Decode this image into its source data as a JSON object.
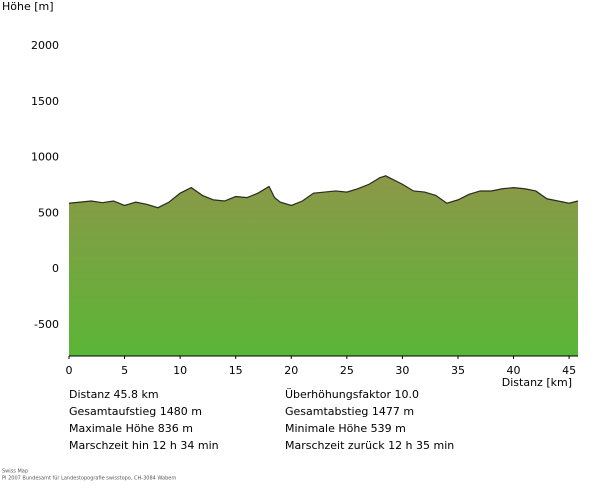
{
  "chart_data": {
    "type": "area",
    "ylabel": "Höhe [m]",
    "xlabel": "Distanz [km]",
    "x": [
      0,
      1,
      2,
      3,
      4,
      5,
      6,
      7,
      8,
      9,
      10,
      11,
      12,
      13,
      14,
      15,
      16,
      17,
      18,
      18.5,
      19,
      20,
      21,
      22,
      23,
      24,
      25,
      26,
      27,
      28,
      28.5,
      29,
      30,
      31,
      32,
      33,
      34,
      35,
      36,
      37,
      38,
      39,
      40,
      41,
      42,
      43,
      44,
      45,
      45.8
    ],
    "values": [
      590,
      600,
      610,
      595,
      610,
      570,
      600,
      580,
      550,
      600,
      680,
      730,
      660,
      620,
      610,
      650,
      640,
      680,
      740,
      640,
      600,
      570,
      610,
      680,
      690,
      700,
      690,
      720,
      760,
      820,
      836,
      810,
      760,
      700,
      690,
      660,
      590,
      620,
      670,
      700,
      700,
      720,
      730,
      720,
      700,
      630,
      610,
      590,
      610
    ],
    "gradient": [
      "#8c9848",
      "#5ab636"
    ],
    "outline": "#2a2a20",
    "xlim": [
      0,
      45.8
    ],
    "xticks": [
      0,
      5,
      10,
      15,
      20,
      25,
      30,
      35,
      40,
      45
    ],
    "ylim": [
      -780,
      2000
    ],
    "yticks": [
      -500,
      0,
      500,
      1000,
      1500,
      2000
    ]
  },
  "info": [
    [
      "Distanz 45.8 km",
      "Überhöhungsfaktor 10.0"
    ],
    [
      "Gesamtaufstieg  1480 m",
      "Gesamtabstieg  1477 m"
    ],
    [
      "Maximale Höhe  836 m",
      "Minimale Höhe  539 m"
    ],
    [
      "Marschzeit hin  12 h 34 min",
      "Marschzeit zurück  12 h 35 min"
    ]
  ],
  "credits": [
    "Swiss Map",
    "PI 2007 Bundesamt für Landestopografie swisstopo, CH-3084 Wabern"
  ]
}
